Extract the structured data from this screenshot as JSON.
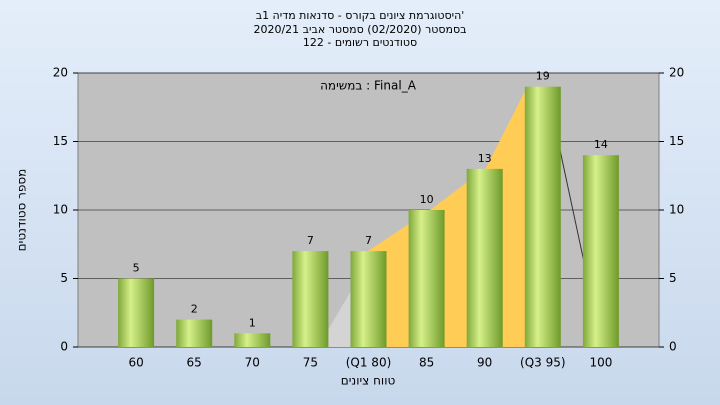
{
  "chart_data": {
    "type": "bar",
    "title": [
      "'היסטוגרמת ציונים בקורס - סדנאות מדיה 1ב",
      "בסמסטר (02/2020) סמסטר אביב 2020/21",
      "סטודנטים רשומים - 122"
    ],
    "annotation": "Final_A : במשימה",
    "xlabel": "טווח ציונים",
    "ylabel": "מספר סטודנטים",
    "categories": [
      "60",
      "65",
      "70",
      "75",
      "(Q1 80)",
      "85",
      "90",
      "(Q3 95)",
      "100"
    ],
    "values": [
      5,
      2,
      1,
      7,
      7,
      10,
      13,
      19,
      14
    ],
    "color": "#9acd32",
    "ylim": [
      0,
      20
    ],
    "yticks": [
      0,
      5,
      10,
      15,
      20
    ],
    "y2lim": [
      0,
      20
    ],
    "y2ticks": [
      0,
      5,
      10,
      15,
      20
    ],
    "grid": true
  }
}
